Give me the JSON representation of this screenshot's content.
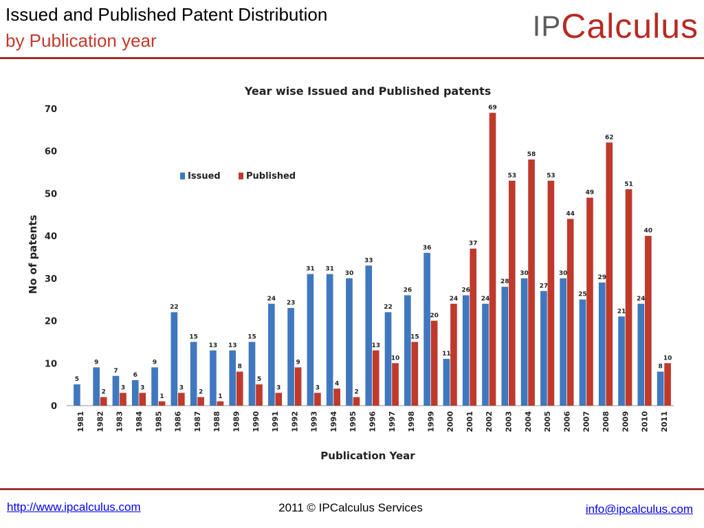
{
  "header": {
    "title": "Issued and Published Patent Distribution",
    "subtitle": "by Publication year",
    "logo_ip": "IP",
    "logo_rest": "Calculus"
  },
  "footer": {
    "website": "http://www.ipcalculus.com",
    "copyright": "2011 © IPCalculus Services",
    "email": "info@ipcalculus.com"
  },
  "colors": {
    "issued": "#3f78c0",
    "published": "#c0392b",
    "accent_rule": "#a0322d"
  },
  "chart_data": {
    "type": "bar",
    "title": "Year wise Issued and Published patents",
    "xlabel": "Publication Year",
    "ylabel": "No of patents",
    "ylim": [
      0,
      70
    ],
    "yticks": [
      0,
      10,
      20,
      30,
      40,
      50,
      60,
      70
    ],
    "grid": false,
    "legend_position": "upper-left",
    "categories": [
      "1981",
      "1982",
      "1983",
      "1984",
      "1985",
      "1986",
      "1987",
      "1988",
      "1989",
      "1990",
      "1991",
      "1992",
      "1993",
      "1994",
      "1995",
      "1996",
      "1997",
      "1998",
      "1999",
      "2000",
      "2001",
      "2002",
      "2003",
      "2004",
      "2005",
      "2006",
      "2007",
      "2008",
      "2009",
      "2010",
      "2011"
    ],
    "series": [
      {
        "name": "Issued",
        "values": [
          5,
          9,
          7,
          6,
          9,
          22,
          15,
          13,
          13,
          15,
          24,
          23,
          31,
          31,
          30,
          33,
          22,
          26,
          36,
          11,
          26,
          24,
          28,
          30,
          27,
          30,
          25,
          29,
          21,
          24,
          8
        ]
      },
      {
        "name": "Published",
        "values": [
          null,
          2,
          3,
          3,
          1,
          3,
          2,
          1,
          8,
          5,
          3,
          9,
          3,
          4,
          2,
          13,
          10,
          15,
          20,
          24,
          37,
          69,
          53,
          58,
          53,
          44,
          49,
          62,
          51,
          40,
          10
        ]
      }
    ]
  }
}
